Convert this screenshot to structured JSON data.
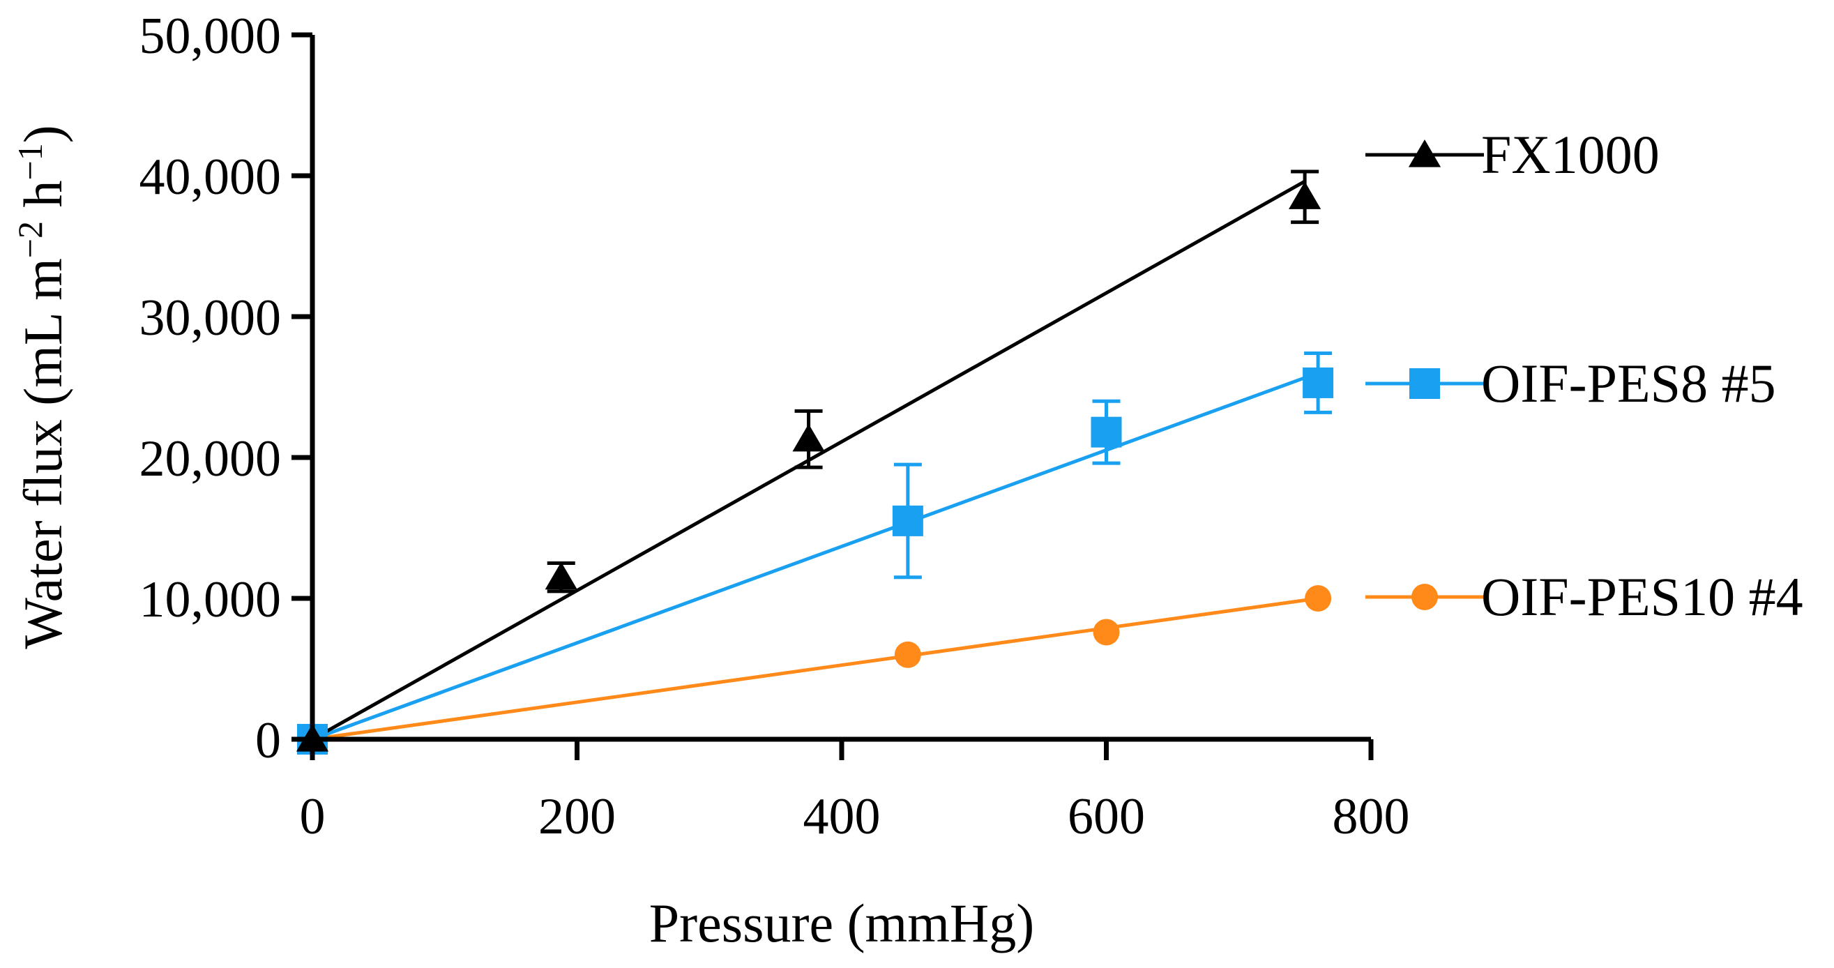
{
  "chart_data": {
    "type": "scatter",
    "xlabel": "Pressure (mmHg)",
    "ylabel": {
      "prefix": "Water flux (mL m",
      "sup1": "−2",
      "middle": " h",
      "sup2": "−1",
      "suffix": ")"
    },
    "xlim": [
      0,
      800
    ],
    "ylim": [
      0,
      50000
    ],
    "x_ticks": [
      0,
      200,
      400,
      600,
      800
    ],
    "x_tick_labels": [
      "0",
      "200",
      "400",
      "600",
      "800"
    ],
    "y_ticks": [
      0,
      10000,
      20000,
      30000,
      40000,
      50000
    ],
    "y_tick_labels": [
      "0",
      "10,000",
      "20,000",
      "30,000",
      "40,000",
      "50,000"
    ],
    "legend_position": "right",
    "grid": false,
    "series": [
      {
        "name": "FX1000",
        "color": "#000000",
        "marker": "triangle",
        "x": [
          0,
          188,
          375,
          750
        ],
        "y": [
          0,
          11500,
          21300,
          38500
        ],
        "err": [
          0,
          1000,
          2000,
          1800
        ],
        "fit": [
          [
            0,
            0
          ],
          [
            750,
            39600
          ]
        ]
      },
      {
        "name": "OIF-PES8 #5",
        "color": "#1aa0f0",
        "marker": "square",
        "x": [
          0,
          450,
          600,
          760
        ],
        "y": [
          0,
          15500,
          21800,
          25300
        ],
        "err": [
          0,
          4000,
          2200,
          2100
        ],
        "fit": [
          [
            0,
            0
          ],
          [
            760,
            26000
          ]
        ]
      },
      {
        "name": "OIF-PES10 #4",
        "color": "#ff8a1a",
        "marker": "circle",
        "x": [
          0,
          450,
          600,
          760
        ],
        "y": [
          0,
          6000,
          7600,
          10000
        ],
        "err": [
          0,
          0,
          0,
          0
        ],
        "fit": [
          [
            0,
            0
          ],
          [
            760,
            10000
          ]
        ]
      }
    ]
  }
}
